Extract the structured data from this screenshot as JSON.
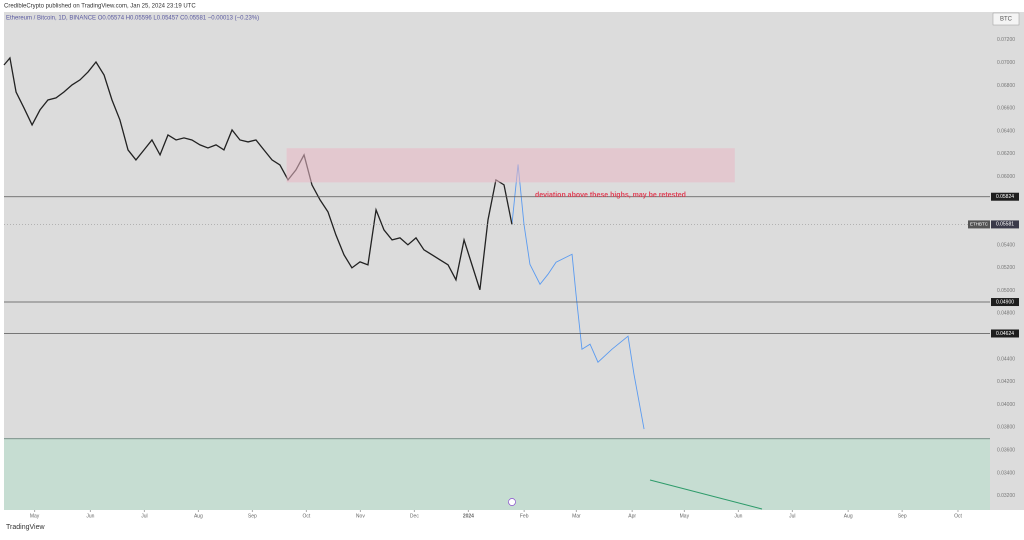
{
  "header": "CredibleCrypto published on TradingView.com, Jan 25, 2024 23:19 UTC",
  "footer": "TradingView",
  "chart_data": {
    "type": "line",
    "symbol_info": "Ethereum / Bitcoin, 1D, BINANCE  O0.05574  H0.05596  L0.05457  C0.05581  −0.00013 (−0.23%)",
    "currency": "BTC",
    "ticker": "ETHBTC",
    "annotation": "deviation above these highs, may be retested",
    "color": "#222222",
    "projection_color": "#5b9bf0",
    "x": [
      0,
      3.3,
      6.7,
      11.1,
      15.6,
      20,
      24.4,
      28.9,
      33.3,
      37.8,
      42.2,
      46.7,
      51.1,
      55.6,
      60,
      64.4,
      68.9,
      73.3,
      77.8,
      82.2,
      86.7,
      91.1,
      95.6,
      100,
      104.4,
      108.9,
      113.3,
      117.8,
      122.2,
      126.7,
      131.1,
      135.6,
      140,
      144.4,
      148.9,
      153.3,
      157.8,
      162.2,
      166.7,
      171.1,
      175.6,
      180,
      184.4,
      188.9,
      193.3,
      197.8,
      202.2,
      206.7,
      211.1,
      215.6,
      220,
      224.4,
      228.9,
      233.3,
      237.8,
      242.2,
      246.7,
      251.1,
      255.6,
      260,
      264.4,
      268.9,
      273.3,
      277.8,
      282.2
    ],
    "values": [
      0.0698,
      0.07042,
      0.06743,
      0.06603,
      0.06454,
      0.06586,
      0.06673,
      0.06691,
      0.06743,
      0.06805,
      0.06849,
      0.06919,
      0.07006,
      0.06892,
      0.06673,
      0.06498,
      0.06235,
      0.06147,
      0.06235,
      0.06322,
      0.06191,
      0.06366,
      0.06322,
      0.0634,
      0.06322,
      0.06279,
      0.06252,
      0.06279,
      0.06235,
      0.0641,
      0.06322,
      0.06305,
      0.06322,
      0.06235,
      0.06147,
      0.06103,
      0.05972,
      0.06059,
      0.06191,
      0.05928,
      0.05796,
      0.05691,
      0.05489,
      0.05314,
      0.052,
      0.05252,
      0.05226,
      0.05709,
      0.05533,
      0.05445,
      0.05463,
      0.05402,
      0.05463,
      0.05358,
      0.05314,
      0.0527,
      0.05226,
      0.05095,
      0.05445,
      0.05226,
      0.05007,
      0.05621,
      0.05972,
      0.05928,
      0.05581
    ],
    "projection_x": [
      282.2,
      285.6,
      288.9,
      292.2,
      297.8,
      302.2,
      306.7,
      315.6,
      317.8,
      321.1,
      325.6,
      330,
      337.8,
      346.7,
      350,
      355.6
    ],
    "projection_values": [
      0.05581,
      0.06107,
      0.05581,
      0.05231,
      0.05056,
      0.05143,
      0.05249,
      0.05319,
      0.04968,
      0.04486,
      0.0453,
      0.04372,
      0.04486,
      0.046,
      0.04267,
      0.03785
    ],
    "levels": [
      {
        "value": 0.05824,
        "label": "0.05824"
      },
      {
        "value": 0.049,
        "label": "0.04900"
      },
      {
        "value": 0.04624,
        "label": "0.04624"
      }
    ],
    "current": {
      "value": 0.05581,
      "label": "0.05581"
    },
    "resistance_zone": {
      "x": [
        157,
        406
      ],
      "y": [
        0.0595,
        0.0625
      ]
    },
    "support_zone_top": 0.037,
    "xlim": [
      0,
      547.8
    ],
    "ylim": [
      0.03075,
      0.07445
    ],
    "xticks": [
      {
        "value": 17,
        "label": "May"
      },
      {
        "value": 48,
        "label": "Jun"
      },
      {
        "value": 78,
        "label": "Jul"
      },
      {
        "value": 108,
        "label": "Aug"
      },
      {
        "value": 138,
        "label": "Sep"
      },
      {
        "value": 168,
        "label": "Oct"
      },
      {
        "value": 198,
        "label": "Nov"
      },
      {
        "value": 228,
        "label": "Dec"
      },
      {
        "value": 258,
        "label": "2024"
      },
      {
        "value": 289,
        "label": "Feb"
      },
      {
        "value": 318,
        "label": "Mar"
      },
      {
        "value": 349,
        "label": "Apr"
      },
      {
        "value": 378,
        "label": "May"
      },
      {
        "value": 408,
        "label": "Jun"
      },
      {
        "value": 438,
        "label": "Jul"
      },
      {
        "value": 469,
        "label": "Aug"
      },
      {
        "value": 499,
        "label": "Sep"
      },
      {
        "value": 530,
        "label": "Oct"
      }
    ],
    "yticks": [
      {
        "value": 0.072,
        "label": "0.07200"
      },
      {
        "value": 0.07,
        "label": "0.07000"
      },
      {
        "value": 0.068,
        "label": "0.06800"
      },
      {
        "value": 0.066,
        "label": "0.06600"
      },
      {
        "value": 0.064,
        "label": "0.06400"
      },
      {
        "value": 0.062,
        "label": "0.06200"
      },
      {
        "value": 0.06,
        "label": "0.06000"
      },
      {
        "value": 0.054,
        "label": "0.05400"
      },
      {
        "value": 0.052,
        "label": "0.05200"
      },
      {
        "value": 0.05,
        "label": "0.05000"
      },
      {
        "value": 0.048,
        "label": "0.04800"
      },
      {
        "value": 0.044,
        "label": "0.04400"
      },
      {
        "value": 0.042,
        "label": "0.04200"
      },
      {
        "value": 0.04,
        "label": "0.04000"
      },
      {
        "value": 0.038,
        "label": "0.03800"
      },
      {
        "value": 0.036,
        "label": "0.03600"
      },
      {
        "value": 0.034,
        "label": "0.03400"
      },
      {
        "value": 0.032,
        "label": "0.03200"
      }
    ]
  }
}
